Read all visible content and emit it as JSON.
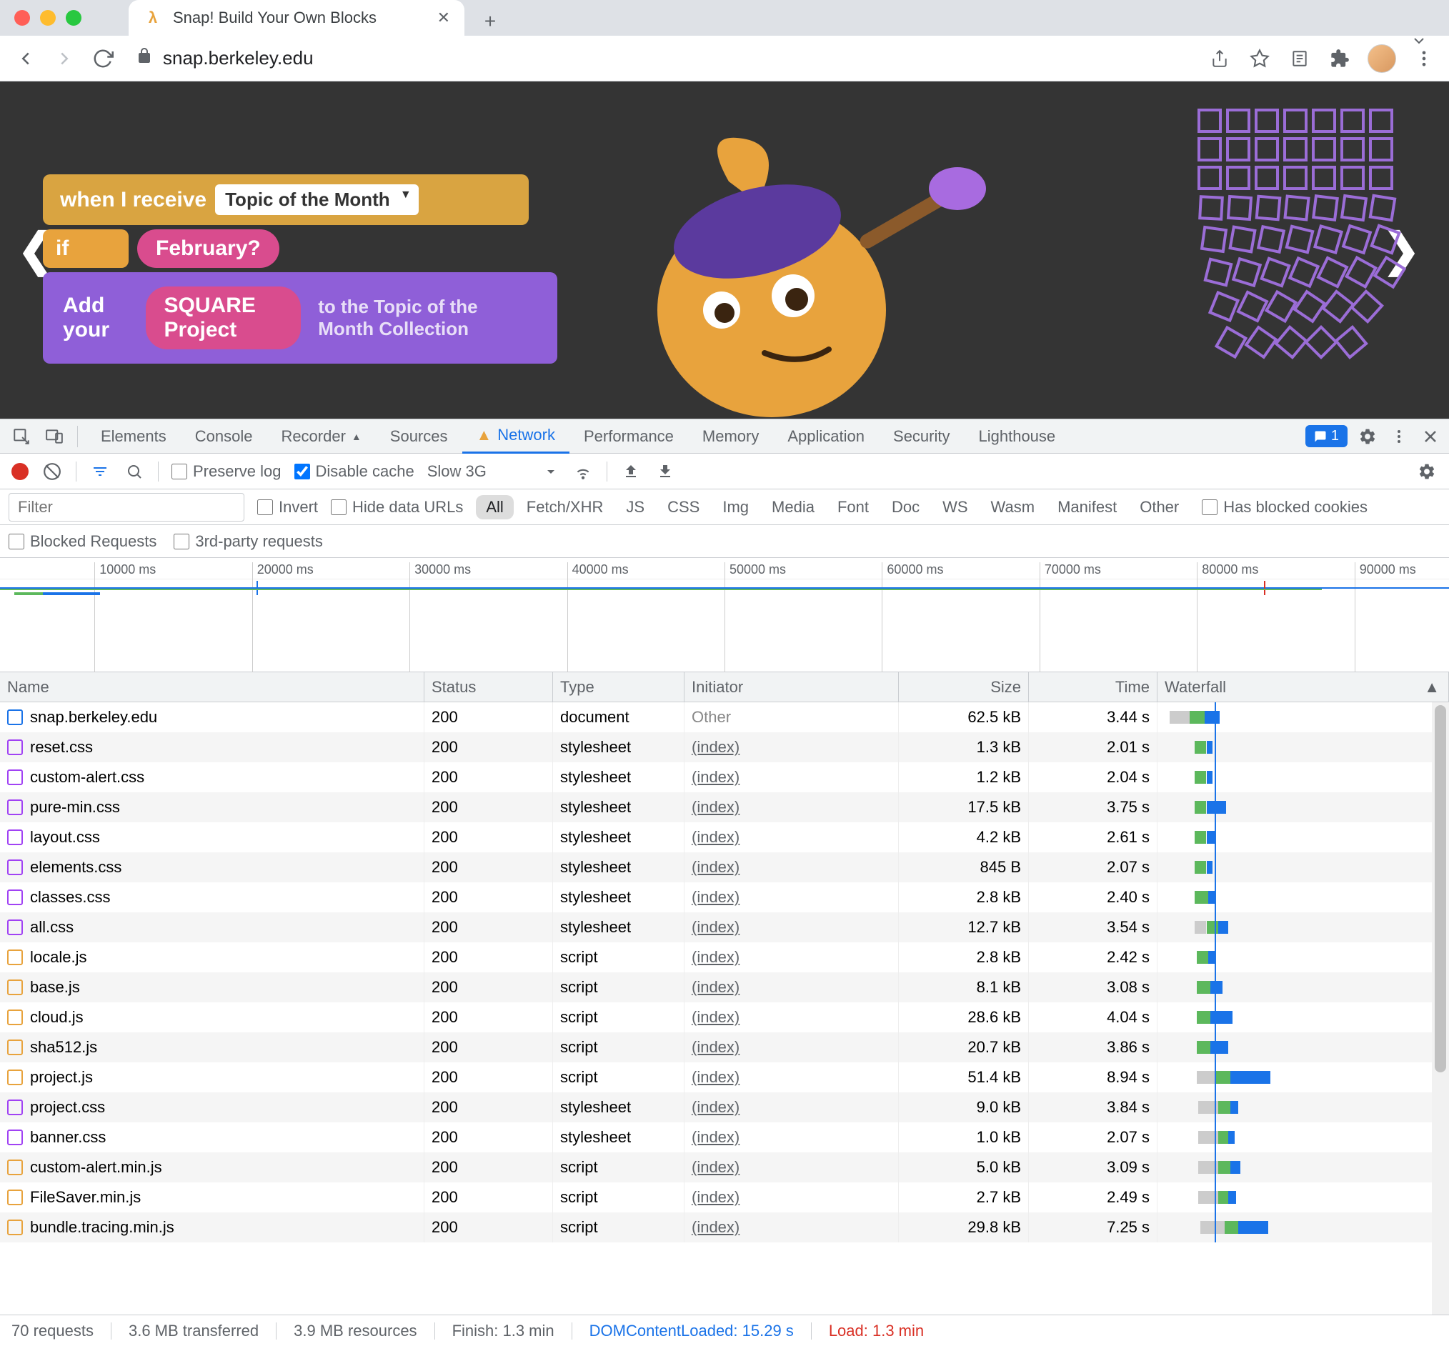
{
  "browser": {
    "tab_title": "Snap! Build Your Own Blocks",
    "tab_favicon_letter": "λ",
    "url": "snap.berkeley.edu"
  },
  "snap_page": {
    "block_when_receive": "when I receive",
    "block_topic_dropdown": "Topic of the Month",
    "block_if": "if",
    "block_february": "February?",
    "block_add_your": "Add your",
    "block_square_project": "SQUARE Project",
    "partial_text": "to the Topic of the Month Collection"
  },
  "devtools": {
    "tabs": [
      "Elements",
      "Console",
      "Recorder",
      "Sources",
      "Network",
      "Performance",
      "Memory",
      "Application",
      "Security",
      "Lighthouse"
    ],
    "active_tab": "Network",
    "issues_count": "1",
    "preserve_log": "Preserve log",
    "disable_cache": "Disable cache",
    "throttle": "Slow 3G",
    "filter_placeholder": "Filter",
    "invert": "Invert",
    "hide_data_urls": "Hide data URLs",
    "filter_types": [
      "All",
      "Fetch/XHR",
      "JS",
      "CSS",
      "Img",
      "Media",
      "Font",
      "Doc",
      "WS",
      "Wasm",
      "Manifest",
      "Other"
    ],
    "has_blocked_cookies": "Has blocked cookies",
    "blocked_requests": "Blocked Requests",
    "third_party_requests": "3rd-party requests",
    "timeline_ticks": [
      "10000 ms",
      "20000 ms",
      "30000 ms",
      "40000 ms",
      "50000 ms",
      "60000 ms",
      "70000 ms",
      "80000 ms",
      "90000 ms"
    ],
    "columns": [
      "Name",
      "Status",
      "Type",
      "Initiator",
      "Size",
      "Time",
      "Waterfall"
    ],
    "requests": [
      {
        "name": "snap.berkeley.edu",
        "status": "200",
        "type": "document",
        "initiator": "Other",
        "initiator_link": false,
        "size": "62.5 kB",
        "time": "3.44 s",
        "icon": "doc",
        "wf": [
          {
            "l": 0.5,
            "w": 2.0,
            "c": "#ccc"
          },
          {
            "l": 2.5,
            "w": 1.5,
            "c": "#5cb85c"
          },
          {
            "l": 4.0,
            "w": 1.5,
            "c": "#1a73e8"
          }
        ]
      },
      {
        "name": "reset.css",
        "status": "200",
        "type": "stylesheet",
        "initiator": "(index)",
        "initiator_link": true,
        "size": "1.3 kB",
        "time": "2.01 s",
        "icon": "css",
        "wf": [
          {
            "l": 3.0,
            "w": 1.2,
            "c": "#5cb85c"
          },
          {
            "l": 4.2,
            "w": 0.6,
            "c": "#1a73e8"
          }
        ]
      },
      {
        "name": "custom-alert.css",
        "status": "200",
        "type": "stylesheet",
        "initiator": "(index)",
        "initiator_link": true,
        "size": "1.2 kB",
        "time": "2.04 s",
        "icon": "css",
        "wf": [
          {
            "l": 3.0,
            "w": 1.2,
            "c": "#5cb85c"
          },
          {
            "l": 4.2,
            "w": 0.6,
            "c": "#1a73e8"
          }
        ]
      },
      {
        "name": "pure-min.css",
        "status": "200",
        "type": "stylesheet",
        "initiator": "(index)",
        "initiator_link": true,
        "size": "17.5 kB",
        "time": "3.75 s",
        "icon": "css",
        "wf": [
          {
            "l": 3.0,
            "w": 1.2,
            "c": "#5cb85c"
          },
          {
            "l": 4.2,
            "w": 2.0,
            "c": "#1a73e8"
          }
        ]
      },
      {
        "name": "layout.css",
        "status": "200",
        "type": "stylesheet",
        "initiator": "(index)",
        "initiator_link": true,
        "size": "4.2 kB",
        "time": "2.61 s",
        "icon": "css",
        "wf": [
          {
            "l": 3.0,
            "w": 1.2,
            "c": "#5cb85c"
          },
          {
            "l": 4.2,
            "w": 1.0,
            "c": "#1a73e8"
          }
        ]
      },
      {
        "name": "elements.css",
        "status": "200",
        "type": "stylesheet",
        "initiator": "(index)",
        "initiator_link": true,
        "size": "845 B",
        "time": "2.07 s",
        "icon": "css",
        "wf": [
          {
            "l": 3.0,
            "w": 1.2,
            "c": "#5cb85c"
          },
          {
            "l": 4.2,
            "w": 0.6,
            "c": "#1a73e8"
          }
        ]
      },
      {
        "name": "classes.css",
        "status": "200",
        "type": "stylesheet",
        "initiator": "(index)",
        "initiator_link": true,
        "size": "2.8 kB",
        "time": "2.40 s",
        "icon": "css",
        "wf": [
          {
            "l": 3.0,
            "w": 1.4,
            "c": "#5cb85c"
          },
          {
            "l": 4.4,
            "w": 0.8,
            "c": "#1a73e8"
          }
        ]
      },
      {
        "name": "all.css",
        "status": "200",
        "type": "stylesheet",
        "initiator": "(index)",
        "initiator_link": true,
        "size": "12.7 kB",
        "time": "3.54 s",
        "icon": "css",
        "wf": [
          {
            "l": 3.0,
            "w": 1.2,
            "c": "#ccc"
          },
          {
            "l": 4.2,
            "w": 1.2,
            "c": "#5cb85c"
          },
          {
            "l": 5.4,
            "w": 1.0,
            "c": "#1a73e8"
          }
        ]
      },
      {
        "name": "locale.js",
        "status": "200",
        "type": "script",
        "initiator": "(index)",
        "initiator_link": true,
        "size": "2.8 kB",
        "time": "2.42 s",
        "icon": "js",
        "wf": [
          {
            "l": 3.2,
            "w": 1.2,
            "c": "#5cb85c"
          },
          {
            "l": 4.4,
            "w": 0.8,
            "c": "#1a73e8"
          }
        ]
      },
      {
        "name": "base.js",
        "status": "200",
        "type": "script",
        "initiator": "(index)",
        "initiator_link": true,
        "size": "8.1 kB",
        "time": "3.08 s",
        "icon": "js",
        "wf": [
          {
            "l": 3.2,
            "w": 1.4,
            "c": "#5cb85c"
          },
          {
            "l": 4.6,
            "w": 1.2,
            "c": "#1a73e8"
          }
        ]
      },
      {
        "name": "cloud.js",
        "status": "200",
        "type": "script",
        "initiator": "(index)",
        "initiator_link": true,
        "size": "28.6 kB",
        "time": "4.04 s",
        "icon": "js",
        "wf": [
          {
            "l": 3.2,
            "w": 1.4,
            "c": "#5cb85c"
          },
          {
            "l": 4.6,
            "w": 2.2,
            "c": "#1a73e8"
          }
        ]
      },
      {
        "name": "sha512.js",
        "status": "200",
        "type": "script",
        "initiator": "(index)",
        "initiator_link": true,
        "size": "20.7 kB",
        "time": "3.86 s",
        "icon": "js",
        "wf": [
          {
            "l": 3.2,
            "w": 1.4,
            "c": "#5cb85c"
          },
          {
            "l": 4.6,
            "w": 1.8,
            "c": "#1a73e8"
          }
        ]
      },
      {
        "name": "project.js",
        "status": "200",
        "type": "script",
        "initiator": "(index)",
        "initiator_link": true,
        "size": "51.4 kB",
        "time": "8.94 s",
        "icon": "js",
        "wf": [
          {
            "l": 3.2,
            "w": 2.0,
            "c": "#ccc"
          },
          {
            "l": 5.2,
            "w": 1.4,
            "c": "#5cb85c"
          },
          {
            "l": 6.6,
            "w": 4.0,
            "c": "#1a73e8"
          }
        ]
      },
      {
        "name": "project.css",
        "status": "200",
        "type": "stylesheet",
        "initiator": "(index)",
        "initiator_link": true,
        "size": "9.0 kB",
        "time": "3.84 s",
        "icon": "css",
        "wf": [
          {
            "l": 3.4,
            "w": 2.0,
            "c": "#ccc"
          },
          {
            "l": 5.4,
            "w": 1.2,
            "c": "#5cb85c"
          },
          {
            "l": 6.6,
            "w": 0.8,
            "c": "#1a73e8"
          }
        ]
      },
      {
        "name": "banner.css",
        "status": "200",
        "type": "stylesheet",
        "initiator": "(index)",
        "initiator_link": true,
        "size": "1.0 kB",
        "time": "2.07 s",
        "icon": "css",
        "wf": [
          {
            "l": 3.4,
            "w": 2.0,
            "c": "#ccc"
          },
          {
            "l": 5.4,
            "w": 1.0,
            "c": "#5cb85c"
          },
          {
            "l": 6.4,
            "w": 0.6,
            "c": "#1a73e8"
          }
        ]
      },
      {
        "name": "custom-alert.min.js",
        "status": "200",
        "type": "script",
        "initiator": "(index)",
        "initiator_link": true,
        "size": "5.0 kB",
        "time": "3.09 s",
        "icon": "js",
        "wf": [
          {
            "l": 3.4,
            "w": 2.0,
            "c": "#ccc"
          },
          {
            "l": 5.4,
            "w": 1.2,
            "c": "#5cb85c"
          },
          {
            "l": 6.6,
            "w": 1.0,
            "c": "#1a73e8"
          }
        ]
      },
      {
        "name": "FileSaver.min.js",
        "status": "200",
        "type": "script",
        "initiator": "(index)",
        "initiator_link": true,
        "size": "2.7 kB",
        "time": "2.49 s",
        "icon": "js",
        "wf": [
          {
            "l": 3.4,
            "w": 2.0,
            "c": "#ccc"
          },
          {
            "l": 5.4,
            "w": 1.0,
            "c": "#5cb85c"
          },
          {
            "l": 6.4,
            "w": 0.8,
            "c": "#1a73e8"
          }
        ]
      },
      {
        "name": "bundle.tracing.min.js",
        "status": "200",
        "type": "script",
        "initiator": "(index)",
        "initiator_link": true,
        "size": "29.8 kB",
        "time": "7.25 s",
        "icon": "js",
        "wf": [
          {
            "l": 3.6,
            "w": 2.4,
            "c": "#ccc"
          },
          {
            "l": 6.0,
            "w": 1.4,
            "c": "#5cb85c"
          },
          {
            "l": 7.4,
            "w": 3.0,
            "c": "#1a73e8"
          }
        ]
      }
    ],
    "status_bar": {
      "requests": "70 requests",
      "transferred": "3.6 MB transferred",
      "resources": "3.9 MB resources",
      "finish": "Finish: 1.3 min",
      "dom_loaded": "DOMContentLoaded: 15.29 s",
      "load": "Load: 1.3 min"
    }
  },
  "colors": {
    "chrome_bg": "#dee1e6",
    "accent_blue": "#1a73e8",
    "accent_red": "#d93025",
    "accent_green": "#5cb85c",
    "accent_orange": "#e8a33d",
    "accent_purple": "#8f5fd8",
    "accent_pink": "#d94c8e"
  }
}
